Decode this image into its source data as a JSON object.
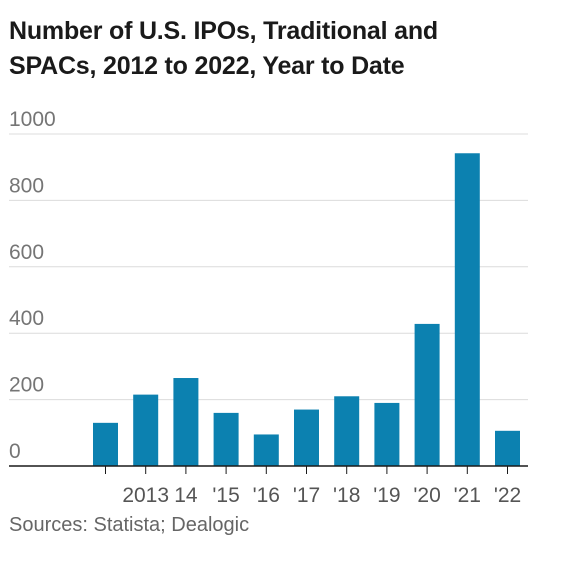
{
  "title_line1": "Number of U.S. IPOs, Traditional and",
  "title_line2": "SPACs, 2012 to 2022, Year to Date",
  "source": "Sources: Statista; Dealogic",
  "colors": {
    "bar": "#0c81b0",
    "grid": "#dcdcdc",
    "axis": "#1a1a1a",
    "tick_text": "#757575",
    "x_text": "#555555"
  },
  "chart_data": {
    "type": "bar",
    "title": "Number of U.S. IPOs, Traditional and SPACs, 2012 to 2022, Year to Date",
    "xlabel": "",
    "ylabel": "",
    "ylim": [
      0,
      1000
    ],
    "yticks": [
      0,
      200,
      400,
      600,
      800,
      1000
    ],
    "categories": [
      "",
      "2013",
      "14",
      "'15",
      "'16",
      "'17",
      "'18",
      "'19",
      "'20",
      "'21",
      "'22"
    ],
    "values": [
      130,
      215,
      265,
      160,
      95,
      170,
      210,
      190,
      428,
      942,
      106
    ],
    "grid": true,
    "legend": "none"
  }
}
